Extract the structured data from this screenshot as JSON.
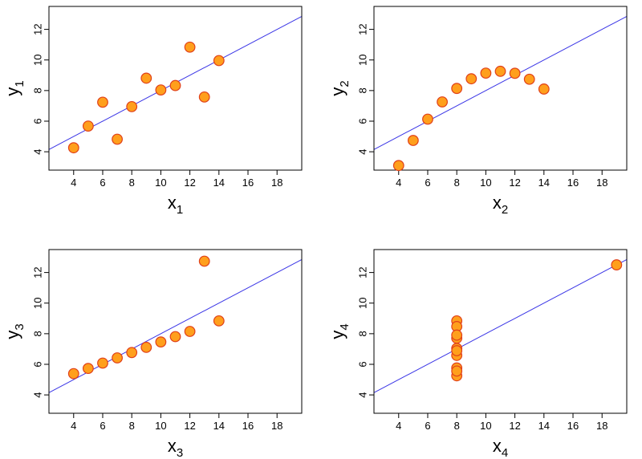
{
  "colors": {
    "point_fill": "#ff9f1c",
    "point_stroke": "#e0401a",
    "regression_line": "#3a35e6",
    "frame": "#000000"
  },
  "chart_data": [
    {
      "type": "scatter",
      "xlabel": "x",
      "xlabel_sub": "1",
      "ylabel": "y",
      "ylabel_sub": "1",
      "xlim": [
        2.3,
        19.7
      ],
      "ylim": [
        2.8,
        13.5
      ],
      "xticks": [
        4,
        6,
        8,
        10,
        12,
        14,
        16,
        18
      ],
      "yticks": [
        4,
        6,
        8,
        10,
        12
      ],
      "grid": false,
      "x": [
        4,
        5,
        6,
        7,
        8,
        9,
        10,
        11,
        12,
        13,
        14
      ],
      "y": [
        4.26,
        5.68,
        7.24,
        4.82,
        6.95,
        8.81,
        8.04,
        8.33,
        10.84,
        7.58,
        9.96
      ],
      "regression": {
        "intercept": 3.0,
        "slope": 0.5
      }
    },
    {
      "type": "scatter",
      "xlabel": "x",
      "xlabel_sub": "2",
      "ylabel": "y",
      "ylabel_sub": "2",
      "xlim": [
        2.3,
        19.7
      ],
      "ylim": [
        2.8,
        13.5
      ],
      "xticks": [
        4,
        6,
        8,
        10,
        12,
        14,
        16,
        18
      ],
      "yticks": [
        4,
        6,
        8,
        10,
        12
      ],
      "grid": false,
      "x": [
        4,
        5,
        6,
        7,
        8,
        9,
        10,
        11,
        12,
        13,
        14
      ],
      "y": [
        3.1,
        4.74,
        6.13,
        7.26,
        8.14,
        8.77,
        9.14,
        9.26,
        9.13,
        8.74,
        8.1
      ],
      "regression": {
        "intercept": 3.0,
        "slope": 0.5
      }
    },
    {
      "type": "scatter",
      "xlabel": "x",
      "xlabel_sub": "3",
      "ylabel": "y",
      "ylabel_sub": "3",
      "xlim": [
        2.3,
        19.7
      ],
      "ylim": [
        2.8,
        13.5
      ],
      "xticks": [
        4,
        6,
        8,
        10,
        12,
        14,
        16,
        18
      ],
      "yticks": [
        4,
        6,
        8,
        10,
        12
      ],
      "grid": false,
      "x": [
        4,
        5,
        6,
        7,
        8,
        9,
        10,
        11,
        12,
        13,
        14
      ],
      "y": [
        5.39,
        5.73,
        6.08,
        6.42,
        6.77,
        7.11,
        7.46,
        7.81,
        8.15,
        12.74,
        8.84
      ],
      "regression": {
        "intercept": 3.0,
        "slope": 0.5
      }
    },
    {
      "type": "scatter",
      "xlabel": "x",
      "xlabel_sub": "4",
      "ylabel": "y",
      "ylabel_sub": "4",
      "xlim": [
        2.3,
        19.7
      ],
      "ylim": [
        2.8,
        13.5
      ],
      "xticks": [
        4,
        6,
        8,
        10,
        12,
        14,
        16,
        18
      ],
      "yticks": [
        4,
        6,
        8,
        10,
        12
      ],
      "grid": false,
      "x": [
        8,
        8,
        8,
        8,
        8,
        8,
        8,
        19,
        8,
        8,
        8
      ],
      "y": [
        6.58,
        5.76,
        7.71,
        8.84,
        8.47,
        7.04,
        5.25,
        12.5,
        5.56,
        7.91,
        6.89
      ],
      "regression": {
        "intercept": 3.0,
        "slope": 0.5
      }
    }
  ]
}
